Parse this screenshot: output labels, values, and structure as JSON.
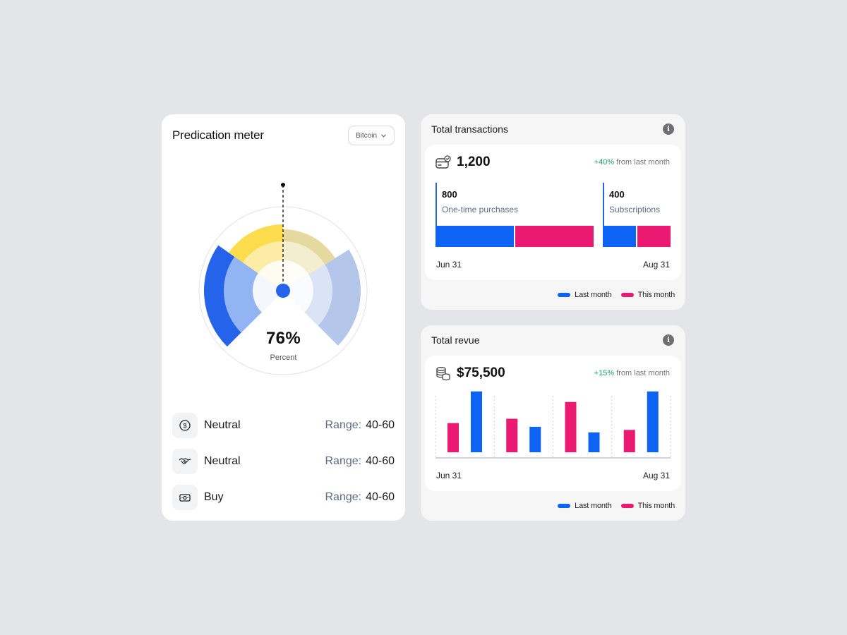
{
  "meter": {
    "title": "Predication meter",
    "asset_select": "Bitcoin",
    "value_text": "76%",
    "value_caption": "Percent",
    "level": 0.76,
    "signals": [
      {
        "icon": "dollar-coin-icon",
        "label": "Neutral",
        "range_key": "Range:",
        "range_value": "40-60"
      },
      {
        "icon": "handshake-icon",
        "label": "Neutral",
        "range_key": "Range:",
        "range_value": "40-60"
      },
      {
        "icon": "banknote-icon",
        "label": "Buy",
        "range_key": "Range:",
        "range_value": "40-60"
      }
    ]
  },
  "transactions": {
    "title": "Total transactions",
    "value": "1,200",
    "change_pct": "+40%",
    "change_text": "from last month",
    "groups": [
      {
        "count": "800",
        "label": "One-time purchases",
        "last_month_share": 0.5,
        "this_month_share": 0.5
      },
      {
        "count": "400",
        "label": "Subscriptions",
        "last_month_share": 0.5,
        "this_month_share": 0.5
      }
    ],
    "date_start": "Jun 31",
    "date_end": "Aug 31",
    "legend": {
      "last_month": "Last month",
      "this_month": "This month"
    }
  },
  "revenue": {
    "title": "Total revue",
    "value": "$75,500",
    "change_pct": "+15%",
    "change_text": "from last month",
    "date_start": "Jun 31",
    "date_end": "Aug 31",
    "legend": {
      "last_month": "Last month",
      "this_month": "This month"
    }
  },
  "chart_data": {
    "type": "bar",
    "categories": [
      "1",
      "2",
      "3",
      "4"
    ],
    "series": [
      {
        "name": "This month",
        "values": [
          47,
          54,
          81,
          36
        ]
      },
      {
        "name": "Last month",
        "values": [
          98,
          41,
          32,
          98
        ]
      }
    ],
    "ylim": [
      0,
      100
    ],
    "grid": true
  },
  "colors": {
    "last_month": "#0d63f3",
    "this_month": "#ec1973",
    "positive": "#1e9e6a",
    "gauge_blue": "#2563eb",
    "gauge_yellow": "#fcdc4d"
  }
}
